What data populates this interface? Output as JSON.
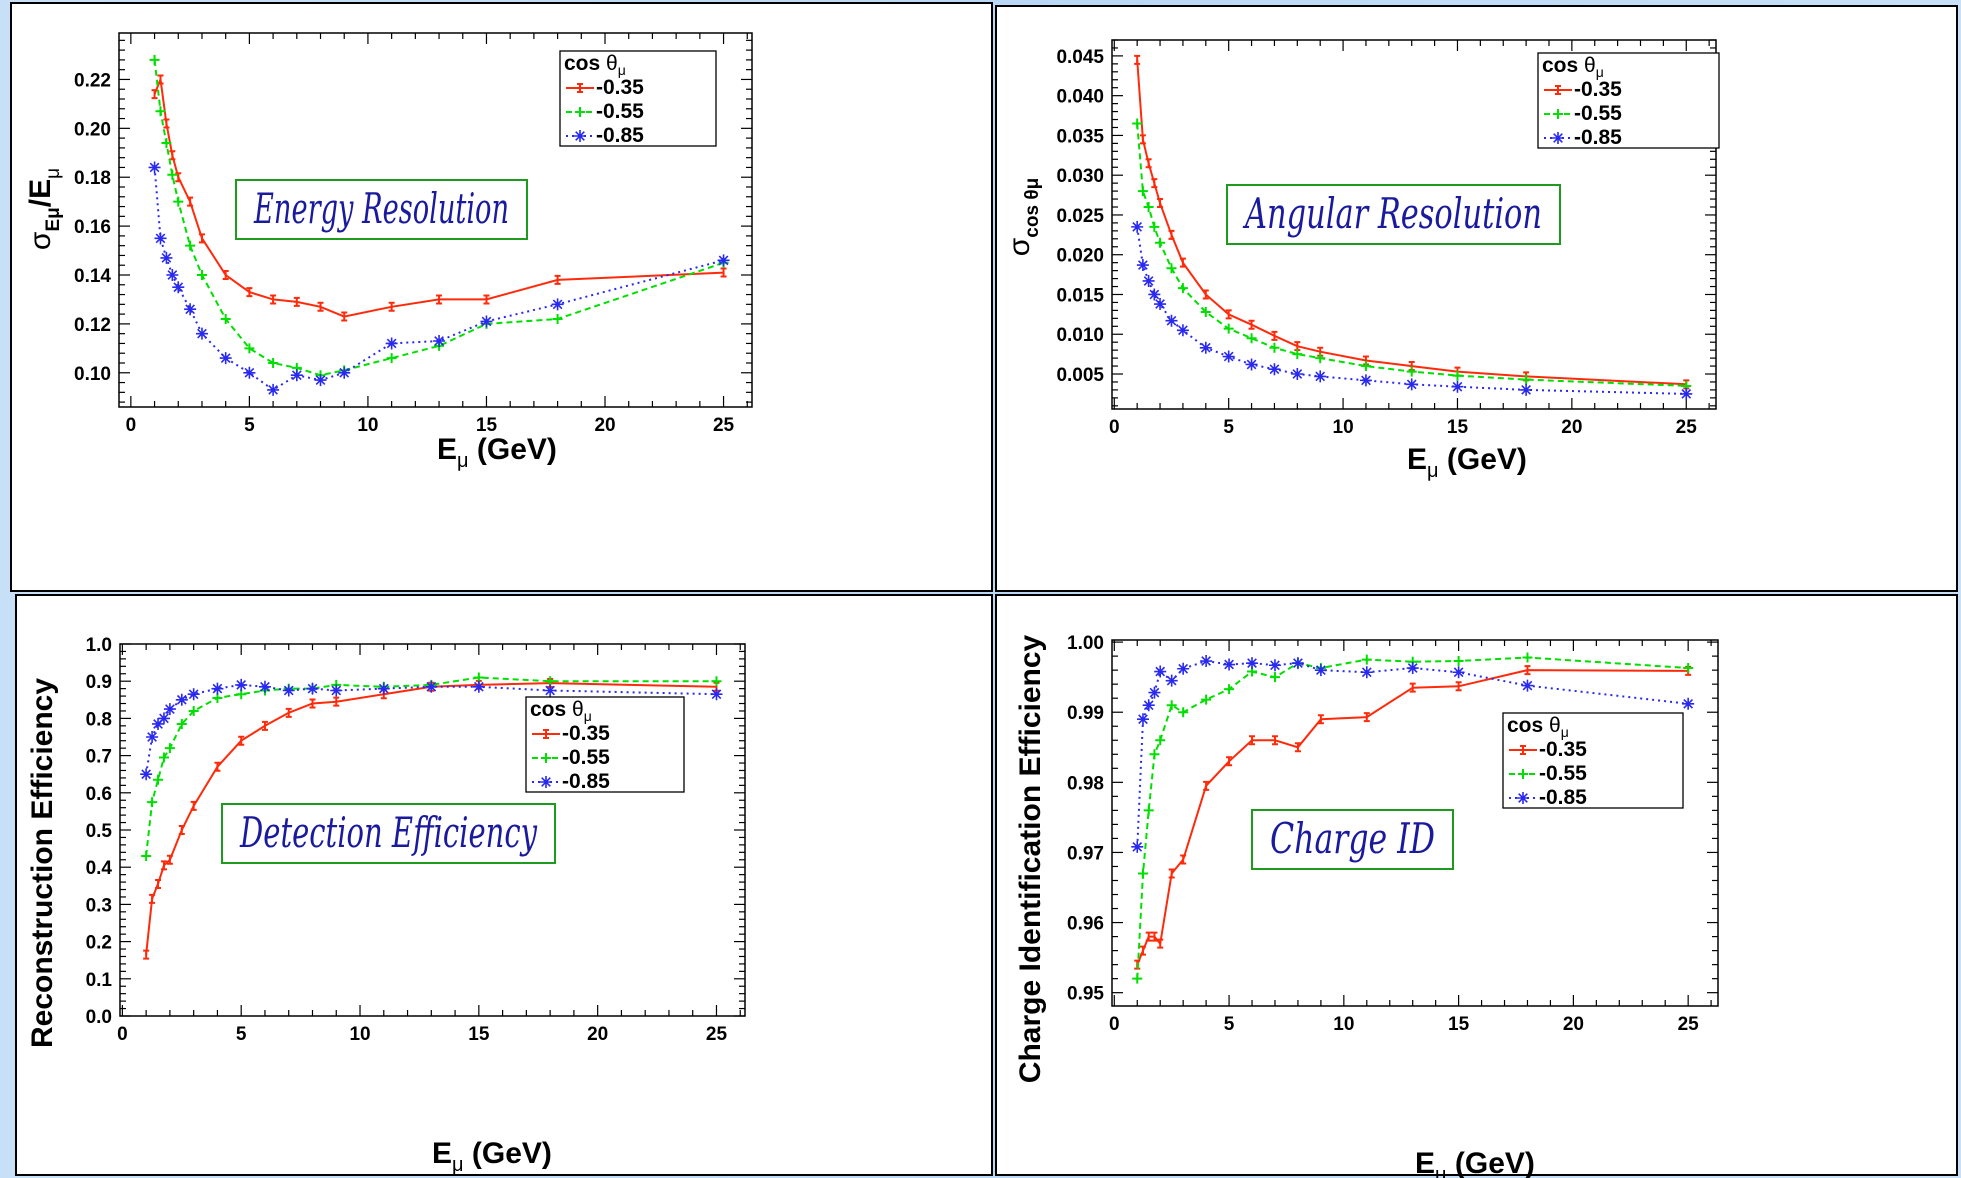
{
  "chart_data": [
    {
      "type": "line",
      "id": "energy",
      "annotation": "Energy Resolution",
      "xlabel": "E_μ (GeV)",
      "ylabel": "σ_Eμ/E_μ",
      "xlim": [
        -0.5,
        26.2
      ],
      "ylim": [
        0.086,
        0.239
      ],
      "xticks": [
        0,
        5,
        10,
        15,
        20,
        25
      ],
      "xtick_labels": [
        "0",
        "5",
        "10",
        "15",
        "20",
        "25"
      ],
      "yticks": [
        0.1,
        0.12,
        0.14,
        0.16,
        0.18,
        0.2,
        0.22
      ],
      "ytick_labels": [
        "0.10",
        "0.12",
        "0.14",
        "0.16",
        "0.18",
        "0.20",
        "0.22"
      ],
      "legend": {
        "title": "cos θμ",
        "position": "top-right"
      },
      "series": [
        {
          "name": "-0.35",
          "color": "#ff2a0a",
          "marker": "tick",
          "dash": "",
          "x": [
            1,
            1.25,
            1.5,
            1.75,
            2,
            2.5,
            3,
            4,
            5,
            6,
            7,
            8,
            9,
            11,
            13,
            15,
            18,
            25
          ],
          "y": [
            0.214,
            0.22,
            0.202,
            0.189,
            0.18,
            0.17,
            0.155,
            0.14,
            0.133,
            0.13,
            0.129,
            0.127,
            0.123,
            0.127,
            0.13,
            0.13,
            0.138,
            0.141
          ]
        },
        {
          "name": "-0.55",
          "color": "#00e000",
          "marker": "plus",
          "dash": "6,4",
          "x": [
            1,
            1.25,
            1.5,
            1.75,
            2,
            2.5,
            3,
            4,
            5,
            6,
            7,
            8,
            9,
            11,
            13,
            15,
            18,
            25
          ],
          "y": [
            0.228,
            0.207,
            0.194,
            0.181,
            0.17,
            0.152,
            0.14,
            0.122,
            0.11,
            0.104,
            0.102,
            0.099,
            0.101,
            0.106,
            0.111,
            0.12,
            0.122,
            0.145
          ]
        },
        {
          "name": "-0.85",
          "color": "#2929f0",
          "marker": "star",
          "dash": "2,4",
          "x": [
            1,
            1.25,
            1.5,
            1.75,
            2,
            2.5,
            3,
            4,
            5,
            6,
            7,
            8,
            9,
            11,
            13,
            15,
            18,
            25
          ],
          "y": [
            0.184,
            0.155,
            0.147,
            0.14,
            0.135,
            0.126,
            0.116,
            0.106,
            0.1,
            0.093,
            0.099,
            0.097,
            0.1,
            0.112,
            0.113,
            0.121,
            0.128,
            0.146
          ]
        }
      ]
    },
    {
      "type": "line",
      "id": "angular",
      "annotation": "Angular Resolution",
      "xlabel": "E_μ (GeV)",
      "ylabel": "σ_cos θμ",
      "xlim": [
        -0.1,
        26.3
      ],
      "ylim": [
        0.0006,
        0.047
      ],
      "xticks": [
        0,
        5,
        10,
        15,
        20,
        25
      ],
      "xtick_labels": [
        "0",
        "5",
        "10",
        "15",
        "20",
        "25"
      ],
      "yticks": [
        0.005,
        0.01,
        0.015,
        0.02,
        0.025,
        0.03,
        0.035,
        0.04,
        0.045
      ],
      "ytick_labels": [
        "0.005",
        "0.010",
        "0.015",
        "0.020",
        "0.025",
        "0.030",
        "0.035",
        "0.040",
        "0.045"
      ],
      "legend": {
        "title": "cos θμ",
        "position": "top-right"
      },
      "series": [
        {
          "name": "-0.35",
          "color": "#ff2a0a",
          "marker": "tick",
          "dash": "",
          "x": [
            1,
            1.25,
            1.5,
            1.75,
            2,
            2.5,
            3,
            4,
            5,
            6,
            7,
            8,
            9,
            11,
            13,
            15,
            18,
            25
          ],
          "y": [
            0.0445,
            0.0345,
            0.0315,
            0.029,
            0.0265,
            0.0225,
            0.019,
            0.015,
            0.0125,
            0.0112,
            0.0098,
            0.0085,
            0.0078,
            0.0067,
            0.006,
            0.0053,
            0.0047,
            0.0037
          ]
        },
        {
          "name": "-0.55",
          "color": "#00e000",
          "marker": "plus",
          "dash": "6,4",
          "x": [
            1,
            1.25,
            1.5,
            1.75,
            2,
            2.5,
            3,
            4,
            5,
            6,
            7,
            8,
            9,
            11,
            13,
            15,
            18,
            25
          ],
          "y": [
            0.0365,
            0.028,
            0.026,
            0.0235,
            0.0215,
            0.0183,
            0.0158,
            0.0128,
            0.0107,
            0.0095,
            0.0083,
            0.0075,
            0.007,
            0.006,
            0.0053,
            0.0048,
            0.0043,
            0.0035
          ]
        },
        {
          "name": "-0.85",
          "color": "#2929f0",
          "marker": "star",
          "dash": "2,4",
          "x": [
            1,
            1.25,
            1.5,
            1.75,
            2,
            2.5,
            3,
            4,
            5,
            6,
            7,
            8,
            9,
            11,
            13,
            15,
            18,
            25
          ],
          "y": [
            0.0235,
            0.0187,
            0.0167,
            0.015,
            0.0138,
            0.0117,
            0.0105,
            0.0083,
            0.0072,
            0.0062,
            0.0056,
            0.005,
            0.0047,
            0.0042,
            0.0037,
            0.0034,
            0.003,
            0.0025
          ]
        }
      ]
    },
    {
      "type": "line",
      "id": "detection",
      "annotation": "Detection Efficiency",
      "xlabel": "E_μ (GeV)",
      "ylabel": "Reconstruction Efficiency",
      "xlim": [
        -0.1,
        26.2
      ],
      "ylim": [
        0.0,
        1.0
      ],
      "xticks": [
        0,
        5,
        10,
        15,
        20,
        25
      ],
      "xtick_labels": [
        "0",
        "5",
        "10",
        "15",
        "20",
        "25"
      ],
      "yticks": [
        0.0,
        0.1,
        0.2,
        0.3,
        0.4,
        0.5,
        0.6,
        0.7,
        0.8,
        0.9,
        1.0
      ],
      "ytick_labels": [
        "0.0",
        "0.1",
        "0.2",
        "0.3",
        "0.4",
        "0.5",
        "0.6",
        "0.7",
        "0.8",
        "0.9",
        "1.0"
      ],
      "legend": {
        "title": "cos θμ",
        "position": "center-right"
      },
      "series": [
        {
          "name": "-0.35",
          "color": "#ff2a0a",
          "marker": "tick",
          "dash": "",
          "x": [
            1,
            1.25,
            1.5,
            1.75,
            2,
            2.5,
            3,
            4,
            5,
            6,
            7,
            8,
            9,
            11,
            13,
            15,
            18,
            25
          ],
          "y": [
            0.165,
            0.315,
            0.355,
            0.405,
            0.42,
            0.5,
            0.565,
            0.67,
            0.74,
            0.78,
            0.815,
            0.84,
            0.845,
            0.865,
            0.885,
            0.89,
            0.895,
            0.885
          ]
        },
        {
          "name": "-0.55",
          "color": "#00e000",
          "marker": "plus",
          "dash": "6,4",
          "x": [
            1,
            1.25,
            1.5,
            1.75,
            2,
            2.5,
            3,
            4,
            5,
            6,
            7,
            8,
            9,
            11,
            13,
            15,
            18,
            25
          ],
          "y": [
            0.43,
            0.575,
            0.635,
            0.695,
            0.72,
            0.785,
            0.82,
            0.855,
            0.865,
            0.875,
            0.88,
            0.88,
            0.89,
            0.885,
            0.89,
            0.91,
            0.9,
            0.9
          ]
        },
        {
          "name": "-0.85",
          "color": "#2929f0",
          "marker": "star",
          "dash": "2,4",
          "x": [
            1,
            1.25,
            1.5,
            1.75,
            2,
            2.5,
            3,
            4,
            5,
            6,
            7,
            8,
            9,
            11,
            13,
            15,
            18,
            25
          ],
          "y": [
            0.65,
            0.75,
            0.785,
            0.8,
            0.825,
            0.85,
            0.865,
            0.88,
            0.89,
            0.885,
            0.875,
            0.88,
            0.875,
            0.88,
            0.885,
            0.885,
            0.875,
            0.865
          ]
        }
      ]
    },
    {
      "type": "line",
      "id": "charge",
      "annotation": "Charge ID",
      "xlabel": "E_μ (GeV)",
      "ylabel": "Charge Identification Efficiency",
      "xlim": [
        -0.1,
        26.3
      ],
      "ylim": [
        0.9481,
        1.0003
      ],
      "xticks": [
        0,
        5,
        10,
        15,
        20,
        25
      ],
      "xtick_labels": [
        "0",
        "5",
        "10",
        "15",
        "20",
        "25"
      ],
      "yticks": [
        0.95,
        0.96,
        0.97,
        0.98,
        0.99,
        1.0
      ],
      "ytick_labels": [
        "0.95",
        "0.96",
        "0.97",
        "0.98",
        "0.99",
        "1.00"
      ],
      "legend": {
        "title": "cos θμ",
        "position": "center-right"
      },
      "series": [
        {
          "name": "-0.35",
          "color": "#ff2a0a",
          "marker": "tick",
          "dash": "",
          "x": [
            1,
            1.25,
            1.5,
            1.75,
            2,
            2.5,
            3,
            4,
            5,
            6,
            7,
            8,
            9,
            11,
            13,
            15,
            18,
            25
          ],
          "y": [
            0.954,
            0.956,
            0.958,
            0.958,
            0.957,
            0.967,
            0.969,
            0.9795,
            0.983,
            0.986,
            0.986,
            0.985,
            0.989,
            0.9893,
            0.9935,
            0.9937,
            0.996,
            0.9959
          ]
        },
        {
          "name": "-0.55",
          "color": "#00e000",
          "marker": "plus",
          "dash": "6,4",
          "x": [
            1,
            1.25,
            1.5,
            1.75,
            2,
            2.5,
            3,
            4,
            5,
            6,
            7,
            8,
            9,
            11,
            13,
            15,
            18,
            25
          ],
          "y": [
            0.952,
            0.967,
            0.976,
            0.984,
            0.986,
            0.991,
            0.99,
            0.9918,
            0.9933,
            0.9958,
            0.995,
            0.997,
            0.9963,
            0.9975,
            0.9972,
            0.9973,
            0.9978,
            0.9963
          ]
        },
        {
          "name": "-0.85",
          "color": "#2929f0",
          "marker": "star",
          "dash": "2,4",
          "x": [
            1,
            1.25,
            1.5,
            1.75,
            2,
            2.5,
            3,
            4,
            5,
            6,
            7,
            8,
            9,
            11,
            13,
            15,
            18,
            25
          ],
          "y": [
            0.9708,
            0.989,
            0.991,
            0.9928,
            0.9958,
            0.9945,
            0.9962,
            0.9973,
            0.9968,
            0.997,
            0.9967,
            0.997,
            0.996,
            0.9957,
            0.9963,
            0.9957,
            0.9938,
            0.9912
          ]
        }
      ]
    }
  ]
}
